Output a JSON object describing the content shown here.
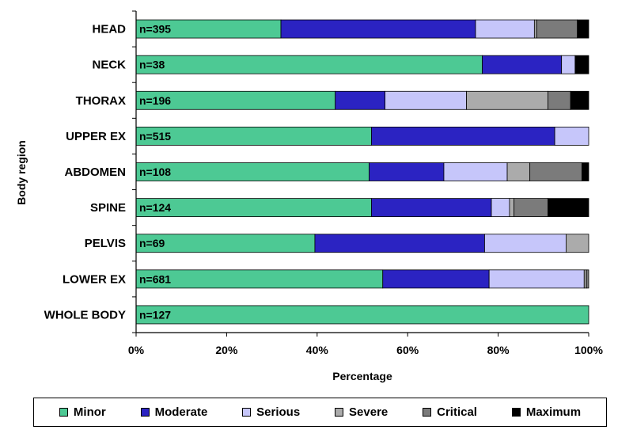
{
  "chart_data": {
    "type": "bar",
    "orientation": "horizontal",
    "stacked": "percent",
    "categories": [
      "HEAD",
      "NECK",
      "THORAX",
      "UPPER EX",
      "ABDOMEN",
      "SPINE",
      "PELVIS",
      "LOWER EX",
      "WHOLE BODY"
    ],
    "sample_sizes": [
      "n=395",
      "n=38",
      "n=196",
      "n=515",
      "n=108",
      "n=124",
      "n=69",
      "n=681",
      "n=127"
    ],
    "series": [
      {
        "name": "Minor",
        "color": "#4DC994",
        "values": [
          32,
          76.5,
          44,
          52,
          51.5,
          52,
          39.5,
          54.5,
          100
        ]
      },
      {
        "name": "Moderate",
        "color": "#2B23C2",
        "values": [
          43,
          17.5,
          11,
          40.5,
          16.5,
          26.5,
          37.5,
          23.5,
          0
        ]
      },
      {
        "name": "Serious",
        "color": "#C6C6FA",
        "values": [
          13,
          3,
          18,
          7.5,
          14,
          4,
          18,
          21,
          0
        ]
      },
      {
        "name": "Severe",
        "color": "#ABABAB",
        "values": [
          0.5,
          0,
          18,
          0,
          5,
          1,
          5,
          0.5,
          0
        ]
      },
      {
        "name": "Critical",
        "color": "#7B7B7B",
        "values": [
          9,
          0,
          5,
          0,
          11.5,
          7.5,
          0,
          0.5,
          0
        ]
      },
      {
        "name": "Maximum",
        "color": "#000000",
        "values": [
          2.5,
          3,
          4,
          0,
          1.5,
          9,
          0,
          0,
          0
        ]
      }
    ],
    "xlabel": "Percentage",
    "ylabel": "Body region",
    "xlim": [
      0,
      100
    ],
    "xticks": [
      "0%",
      "20%",
      "40%",
      "60%",
      "80%",
      "100%"
    ],
    "legend": "bottom",
    "grid": false
  }
}
